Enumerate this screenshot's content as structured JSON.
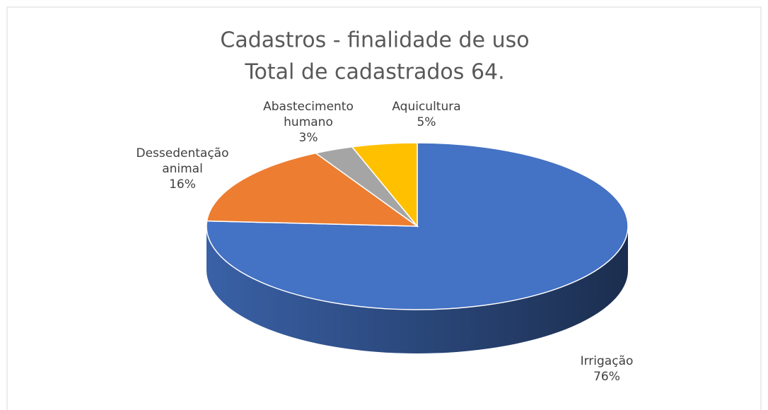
{
  "chart_data": {
    "type": "pie",
    "title": "Cadastros - finalidade de uso",
    "subtitle": "Total de cadastrados 64.",
    "categories": [
      "Irrigação",
      "Dessedentação animal",
      "Abastecimento humano",
      "Aquicultura"
    ],
    "values": [
      76,
      16,
      3,
      5
    ],
    "value_labels": [
      "76%",
      "16%",
      "3%",
      "5%"
    ],
    "colors": [
      "#4472c4",
      "#ed7d31",
      "#a5a5a5",
      "#ffc000"
    ]
  }
}
